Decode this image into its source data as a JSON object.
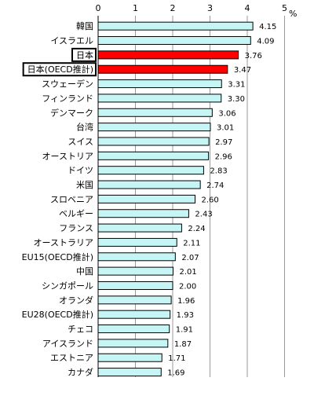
{
  "chart_data": {
    "type": "bar",
    "orientation": "horizontal",
    "unit": "%",
    "xlim": [
      0,
      5
    ],
    "xticks": [
      "0",
      "1",
      "2",
      "3",
      "4",
      "5"
    ],
    "grid": "vertical",
    "highlight_color": "#ff0000",
    "bar_color": "#c6f5f5",
    "categories": [
      "韓国",
      "イスラエル",
      "日本",
      "日本(OECD推計)",
      "スウェーデン",
      "フィンランド",
      "デンマーク",
      "台湾",
      "スイス",
      "オーストリア",
      "ドイツ",
      "米国",
      "スロベニア",
      "ベルギー",
      "フランス",
      "オーストラリア",
      "EU15(OECD推計)",
      "中国",
      "シンガポール",
      "オランダ",
      "EU28(OECD推計)",
      "チェコ",
      "アイスランド",
      "エストニア",
      "カナダ"
    ],
    "values": [
      4.15,
      4.09,
      3.76,
      3.47,
      3.31,
      3.3,
      3.06,
      3.01,
      2.97,
      2.96,
      2.83,
      2.74,
      2.6,
      2.43,
      2.24,
      2.11,
      2.07,
      2.01,
      2.0,
      1.96,
      1.93,
      1.91,
      1.87,
      1.71,
      1.69
    ],
    "value_labels": [
      "4.15",
      "4.09",
      "3.76",
      "3.47",
      "3.31",
      "3.30",
      "3.06",
      "3.01",
      "2.97",
      "2.96",
      "2.83",
      "2.74",
      "2.60",
      "2.43",
      "2.24",
      "2.11",
      "2.07",
      "2.01",
      "2.00",
      "1.96",
      "1.93",
      "1.91",
      "1.87",
      "1.71",
      "1.69"
    ],
    "highlighted": [
      2,
      3
    ]
  }
}
